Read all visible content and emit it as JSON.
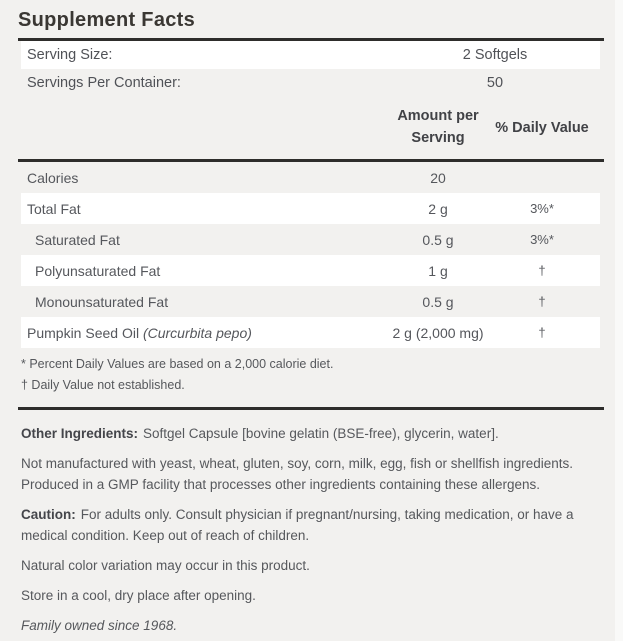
{
  "title": "Supplement Facts",
  "serving": {
    "rows": [
      {
        "label": "Serving Size:",
        "value": "2 Softgels",
        "shade": "white"
      },
      {
        "label": "Servings Per Container:",
        "value": "50",
        "shade": "gray"
      }
    ]
  },
  "table": {
    "columns": {
      "amount_line1": "Amount per",
      "amount_line2": "Serving",
      "dv": "% Daily Value"
    },
    "rows": [
      {
        "name": "Calories",
        "latin": "",
        "amount": "20",
        "dv": "",
        "indent": false,
        "shade": "gray"
      },
      {
        "name": "Total Fat",
        "latin": "",
        "amount": "2 g",
        "dv": "3%*",
        "indent": false,
        "shade": "white"
      },
      {
        "name": "Saturated Fat",
        "latin": "",
        "amount": "0.5 g",
        "dv": "3%*",
        "indent": true,
        "shade": "gray"
      },
      {
        "name": "Polyunsaturated Fat",
        "latin": "",
        "amount": "1 g",
        "dv": "†",
        "indent": true,
        "shade": "white"
      },
      {
        "name": "Monounsaturated Fat",
        "latin": "",
        "amount": "0.5 g",
        "dv": "†",
        "indent": true,
        "shade": "gray"
      },
      {
        "name": "Pumpkin Seed Oil ",
        "latin": "(Curcurbita pepo)",
        "amount": "2 g (2,000 mg)",
        "dv": "†",
        "indent": false,
        "shade": "white"
      }
    ],
    "footnotes": [
      "* Percent Daily Values are based on a 2,000 calorie diet.",
      "† Daily Value not established."
    ]
  },
  "info": {
    "other_ingredients_label": "Other Ingredients:",
    "other_ingredients_text": "Softgel Capsule [bovine gelatin (BSE-free), glycerin, water].",
    "allergen_statement": "Not manufactured with yeast, wheat, gluten, soy, corn, milk, egg, fish or shellfish ingredients. Produced in a GMP facility that processes other ingredients containing these allergens.",
    "caution_label": "Caution:",
    "caution_text": "For adults only. Consult physician if pregnant/nursing, taking medication, or have a medical condition. Keep out of reach of children.",
    "notes": [
      "Natural color variation may occur in this product.",
      "Store in a cool, dry place after opening."
    ],
    "tagline": "Family owned since 1968."
  },
  "colors": {
    "background": "#f2f1ef",
    "row_white": "#ffffff",
    "rule": "#2e2d2b",
    "title_text": "#3a3733",
    "heading_text": "#414246",
    "body_text": "#55575c"
  }
}
